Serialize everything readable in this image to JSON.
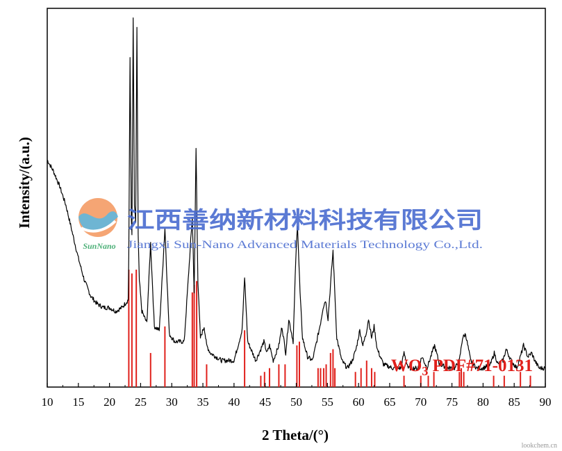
{
  "chart_data": {
    "type": "line",
    "title": "",
    "xlabel": "2 Theta/(°)",
    "ylabel": "Intensity/(a.u.)",
    "xlim": [
      10,
      90
    ],
    "xticks": [
      10,
      15,
      20,
      25,
      30,
      35,
      40,
      45,
      50,
      55,
      60,
      65,
      70,
      75,
      80,
      85,
      90
    ],
    "y_ticks_shown": false,
    "grid": false,
    "series": [
      {
        "kind": "xrd-pattern",
        "color": "#000000",
        "x": [
          10,
          11,
          12,
          13,
          14,
          15,
          16,
          17,
          18,
          19,
          20,
          21,
          22,
          23,
          23.1,
          23.3,
          23.5,
          23.6,
          23.8,
          24.0,
          24.2,
          24.4,
          24.6,
          24.8,
          25.2,
          26.0,
          26.6,
          27.2,
          28.0,
          28.9,
          29.6,
          30.5,
          32.0,
          33.3,
          33.6,
          33.9,
          34.2,
          34.6,
          35.2,
          35.6,
          36.2,
          38.0,
          40.0,
          41.3,
          41.7,
          42.2,
          43.5,
          44.3,
          44.8,
          45.3,
          45.7,
          46.3,
          47.2,
          47.7,
          48.3,
          48.8,
          49.5,
          49.9,
          50.2,
          50.6,
          51.0,
          51.8,
          52.6,
          53.4,
          53.9,
          54.3,
          54.7,
          55.1,
          55.5,
          55.9,
          56.5,
          57.3,
          58.2,
          59.0,
          59.6,
          60.2,
          60.7,
          61.2,
          61.6,
          62.1,
          62.5,
          63.0,
          64.0,
          65.5,
          66.8,
          67.3,
          68.0,
          69.5,
          70.2,
          71.0,
          71.6,
          72.2,
          73.0,
          74.5,
          75.5,
          76.2,
          76.7,
          77.2,
          78.0,
          79.0,
          80.0,
          81.2,
          81.8,
          82.4,
          83.2,
          83.7,
          84.5,
          85.4,
          86.0,
          86.5,
          87.2,
          87.8,
          88.3,
          89.0,
          90
        ],
        "y": [
          0.6,
          0.57,
          0.53,
          0.48,
          0.41,
          0.34,
          0.28,
          0.24,
          0.22,
          0.21,
          0.21,
          0.2,
          0.21,
          0.23,
          0.35,
          0.87,
          0.45,
          0.4,
          0.97,
          0.48,
          0.43,
          0.95,
          0.4,
          0.28,
          0.2,
          0.17,
          0.38,
          0.16,
          0.15,
          0.42,
          0.14,
          0.12,
          0.12,
          0.45,
          0.25,
          0.63,
          0.28,
          0.13,
          0.16,
          0.11,
          0.09,
          0.07,
          0.07,
          0.15,
          0.29,
          0.12,
          0.07,
          0.1,
          0.12,
          0.09,
          0.11,
          0.07,
          0.11,
          0.16,
          0.09,
          0.18,
          0.12,
          0.33,
          0.43,
          0.25,
          0.13,
          0.08,
          0.07,
          0.13,
          0.17,
          0.21,
          0.23,
          0.18,
          0.27,
          0.36,
          0.13,
          0.07,
          0.05,
          0.07,
          0.1,
          0.15,
          0.11,
          0.14,
          0.18,
          0.13,
          0.16,
          0.1,
          0.06,
          0.05,
          0.05,
          0.09,
          0.05,
          0.05,
          0.08,
          0.05,
          0.08,
          0.11,
          0.06,
          0.05,
          0.05,
          0.07,
          0.13,
          0.14,
          0.07,
          0.05,
          0.05,
          0.06,
          0.09,
          0.06,
          0.07,
          0.1,
          0.07,
          0.05,
          0.08,
          0.11,
          0.08,
          0.09,
          0.07,
          0.05,
          0.05
        ]
      },
      {
        "name": "WO3 PDF#71-0131",
        "kind": "reference-sticks",
        "color": "#e0201b",
        "x": [
          23.1,
          23.6,
          24.3,
          26.6,
          28.9,
          33.3,
          33.6,
          34.0,
          35.6,
          41.7,
          44.3,
          44.9,
          45.7,
          47.2,
          48.2,
          50.1,
          50.5,
          53.5,
          53.9,
          54.4,
          54.8,
          55.5,
          55.9,
          56.2,
          59.5,
          60.4,
          61.3,
          62.1,
          62.6,
          67.3,
          70.0,
          71.2,
          72.1,
          76.2,
          76.5,
          76.9,
          81.7,
          83.4,
          86.0,
          87.6
        ],
        "y": [
          0.31,
          0.3,
          0.31,
          0.09,
          0.16,
          0.25,
          0.27,
          0.28,
          0.06,
          0.15,
          0.03,
          0.04,
          0.05,
          0.06,
          0.06,
          0.11,
          0.12,
          0.05,
          0.05,
          0.05,
          0.06,
          0.09,
          0.1,
          0.05,
          0.04,
          0.05,
          0.07,
          0.05,
          0.04,
          0.03,
          0.03,
          0.03,
          0.04,
          0.04,
          0.05,
          0.04,
          0.03,
          0.03,
          0.04,
          0.03
        ]
      }
    ],
    "annotation": {
      "prefix": "WO",
      "subscript": "3",
      "suffix": " PDF#71-0131",
      "color": "#e0201b",
      "placement": "bottom-right, above reference sticks"
    }
  },
  "watermark": {
    "company_cn": "江西善纳新材料科技有限公司",
    "company_en": "Jiangxi Sun-Nano Advanced Materials Technology Co.,Ltd.",
    "logo_text": "SunNano",
    "color": "#4a6cd0",
    "logo_colors": [
      "#f28a4a",
      "#4fb0dc",
      "#3aa86a"
    ]
  },
  "source_mark": "lookchem.cn"
}
